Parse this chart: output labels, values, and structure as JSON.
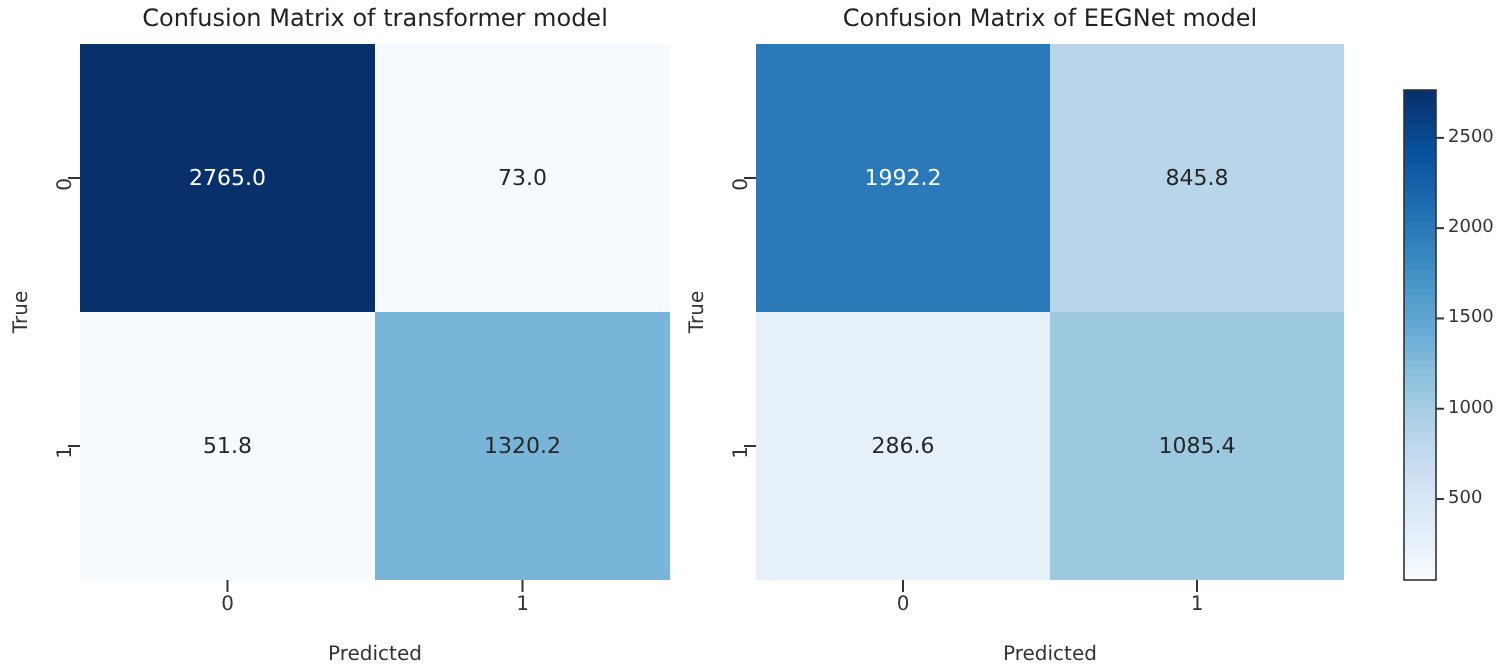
{
  "chart_data": [
    {
      "type": "heatmap",
      "title": "Confusion Matrix of transformer model",
      "xlabel": "Predicted",
      "ylabel": "True",
      "categories": [
        "0",
        "1"
      ],
      "y_categories": [
        "0",
        "1"
      ],
      "cells": [
        [
          2765.0,
          73.0
        ],
        [
          51.8,
          1320.2
        ]
      ],
      "cell_labels": [
        [
          "2765.0",
          "73.0"
        ],
        [
          "51.8",
          "1320.2"
        ]
      ]
    },
    {
      "type": "heatmap",
      "title": "Confusion Matrix of EEGNet model",
      "xlabel": "Predicted",
      "ylabel": "True",
      "categories": [
        "0",
        "1"
      ],
      "y_categories": [
        "0",
        "1"
      ],
      "cells": [
        [
          1992.2,
          845.8
        ],
        [
          286.6,
          1085.4
        ]
      ],
      "cell_labels": [
        [
          "1992.2",
          "845.8"
        ],
        [
          "286.6",
          "1085.4"
        ]
      ],
      "clim": [
        51.8,
        2765
      ],
      "cticks": [
        500,
        1000,
        1500,
        2000,
        2500
      ]
    }
  ]
}
